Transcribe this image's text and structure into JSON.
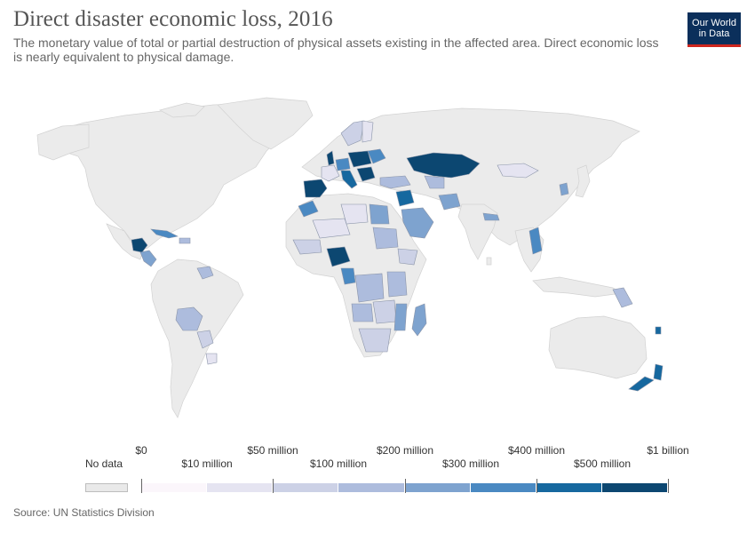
{
  "header": {
    "title": "Direct disaster economic loss, 2016",
    "subtitle": "The monetary value of total or partial destruction of physical assets existing in the affected area. Direct economic loss is nearly equivalent to physical damage.",
    "logo_text": "Our World in Data"
  },
  "legend": {
    "no_data_label": "No data",
    "no_data_color": "#e9e9e9",
    "tick_labels_top": [
      "$0",
      "$50 million",
      "$200 million",
      "$400 million",
      "$1 billion"
    ],
    "tick_labels_bottom": [
      "$10 million",
      "$100 million",
      "$300 million",
      "$500 million"
    ],
    "bin_colors": [
      "#fbf6fb",
      "#e5e4f1",
      "#ccd1e6",
      "#adbcdd",
      "#7ea3cf",
      "#4a89c2",
      "#16689f",
      "#0c4771"
    ]
  },
  "map": {
    "colors": {
      "ocean": "#ffffff",
      "no_data": "#ebebeb",
      "border": "#cfcfcf"
    }
  },
  "footer": {
    "source": "Source: UN Statistics Division"
  }
}
